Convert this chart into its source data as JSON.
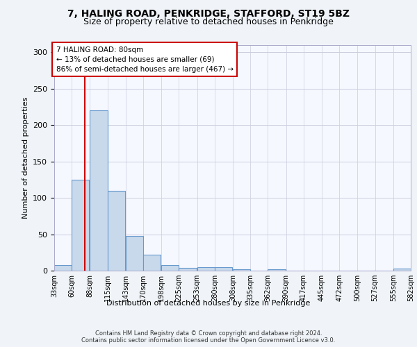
{
  "title1": "7, HALING ROAD, PENKRIDGE, STAFFORD, ST19 5BZ",
  "title2": "Size of property relative to detached houses in Penkridge",
  "xlabel": "Distribution of detached houses by size in Penkridge",
  "ylabel": "Number of detached properties",
  "bin_labels": [
    "33sqm",
    "60sqm",
    "88sqm",
    "115sqm",
    "143sqm",
    "170sqm",
    "198sqm",
    "225sqm",
    "253sqm",
    "280sqm",
    "308sqm",
    "335sqm",
    "362sqm",
    "390sqm",
    "417sqm",
    "445sqm",
    "472sqm",
    "500sqm",
    "527sqm",
    "555sqm",
    "582sqm"
  ],
  "bin_edges": [
    33,
    60,
    88,
    115,
    143,
    170,
    198,
    225,
    253,
    280,
    308,
    335,
    362,
    390,
    417,
    445,
    472,
    500,
    527,
    555,
    582
  ],
  "bar_heights": [
    8,
    125,
    220,
    110,
    48,
    22,
    8,
    4,
    5,
    5,
    2,
    0,
    2,
    0,
    0,
    0,
    0,
    0,
    0,
    3
  ],
  "bar_color": "#c9d9ec",
  "bar_edgecolor": "#6699cc",
  "vline_x": 80,
  "vline_color": "#cc0000",
  "annotation_line1": "7 HALING ROAD: 80sqm",
  "annotation_line2": "← 13% of detached houses are smaller (69)",
  "annotation_line3": "86% of semi-detached houses are larger (467) →",
  "annotation_box_color": "#ffffff",
  "annotation_box_edgecolor": "#cc0000",
  "ylim": [
    0,
    310
  ],
  "yticks": [
    0,
    50,
    100,
    150,
    200,
    250,
    300
  ],
  "footer_text": "Contains HM Land Registry data © Crown copyright and database right 2024.\nContains public sector information licensed under the Open Government Licence v3.0.",
  "bg_color": "#f0f4f8",
  "plot_bg_color": "#f5f8ff",
  "grid_color": "#ccccdd"
}
